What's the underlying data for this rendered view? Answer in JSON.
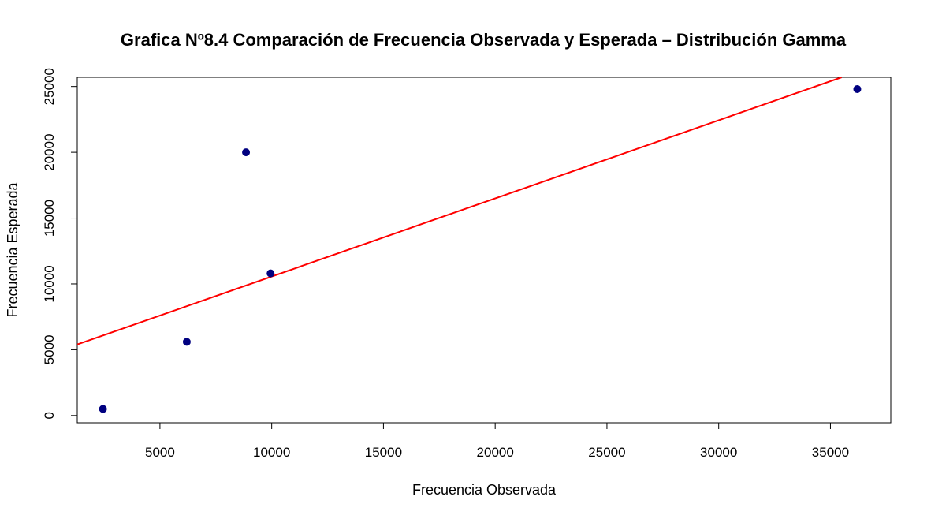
{
  "chart_data": {
    "type": "scatter",
    "title": "Grafica Nº8.4 Comparación de Frecuencia Observada y Esperada – Distribución Gamma",
    "xlabel": "Frecuencia Observada",
    "ylabel": "Frecuencia Esperada",
    "xlim": [
      1300,
      37700
    ],
    "ylim": [
      -550,
      25700
    ],
    "x_ticks": [
      5000,
      10000,
      15000,
      20000,
      25000,
      30000,
      35000
    ],
    "x_tick_labels": [
      "5000",
      "10000",
      "15000",
      "20000",
      "25000",
      "30000",
      "35000"
    ],
    "y_ticks": [
      0,
      5000,
      10000,
      15000,
      20000,
      25000
    ],
    "y_tick_labels": [
      "0",
      "5000",
      "10000",
      "15000",
      "20000",
      "25000"
    ],
    "grid": false,
    "series": [
      {
        "type": "scatter",
        "color": "#000080",
        "points": [
          {
            "x": 2450,
            "y": 500
          },
          {
            "x": 6200,
            "y": 5600
          },
          {
            "x": 8850,
            "y": 20000
          },
          {
            "x": 9950,
            "y": 10800
          },
          {
            "x": 36200,
            "y": 24800
          }
        ]
      },
      {
        "type": "line",
        "color": "#ff0000",
        "points": [
          {
            "x": 1300,
            "y": 5400
          },
          {
            "x": 35500,
            "y": 25700
          }
        ]
      }
    ]
  }
}
